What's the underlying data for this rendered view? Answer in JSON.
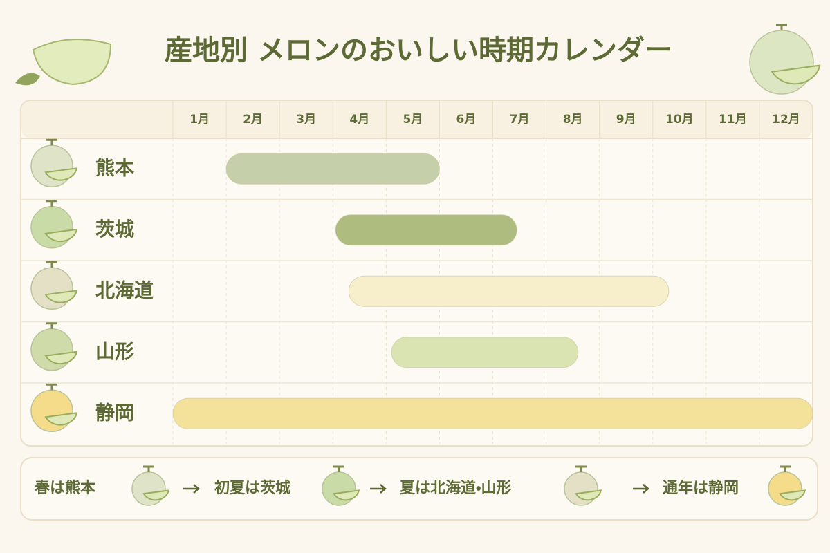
{
  "title": "産地別 メロンのおいしい時期カレンダー",
  "calendar": {
    "months": [
      "1月",
      "2月",
      "3月",
      "4月",
      "5月",
      "6月",
      "7月",
      "8月",
      "9月",
      "10月",
      "11月",
      "12月"
    ],
    "xlim": [
      0,
      12
    ],
    "rows": [
      {
        "label": "熊本",
        "start": 1,
        "end": 5,
        "color": "#c5cfa9"
      },
      {
        "label": "茨城",
        "start": 3.05,
        "end": 6.45,
        "color": "#aebd7f"
      },
      {
        "label": "北海道",
        "start": 3.3,
        "end": 9.3,
        "color": "#f7efcc"
      },
      {
        "label": "山形",
        "start": 4.1,
        "end": 7.6,
        "color": "#d9e4b2"
      },
      {
        "label": "静岡",
        "start": 0,
        "end": 12,
        "color": "#f5e29a"
      }
    ]
  },
  "summary": [
    "春は熊本",
    "初夏は茨城",
    "夏は北海道・山形",
    "通年は静岡"
  ]
}
